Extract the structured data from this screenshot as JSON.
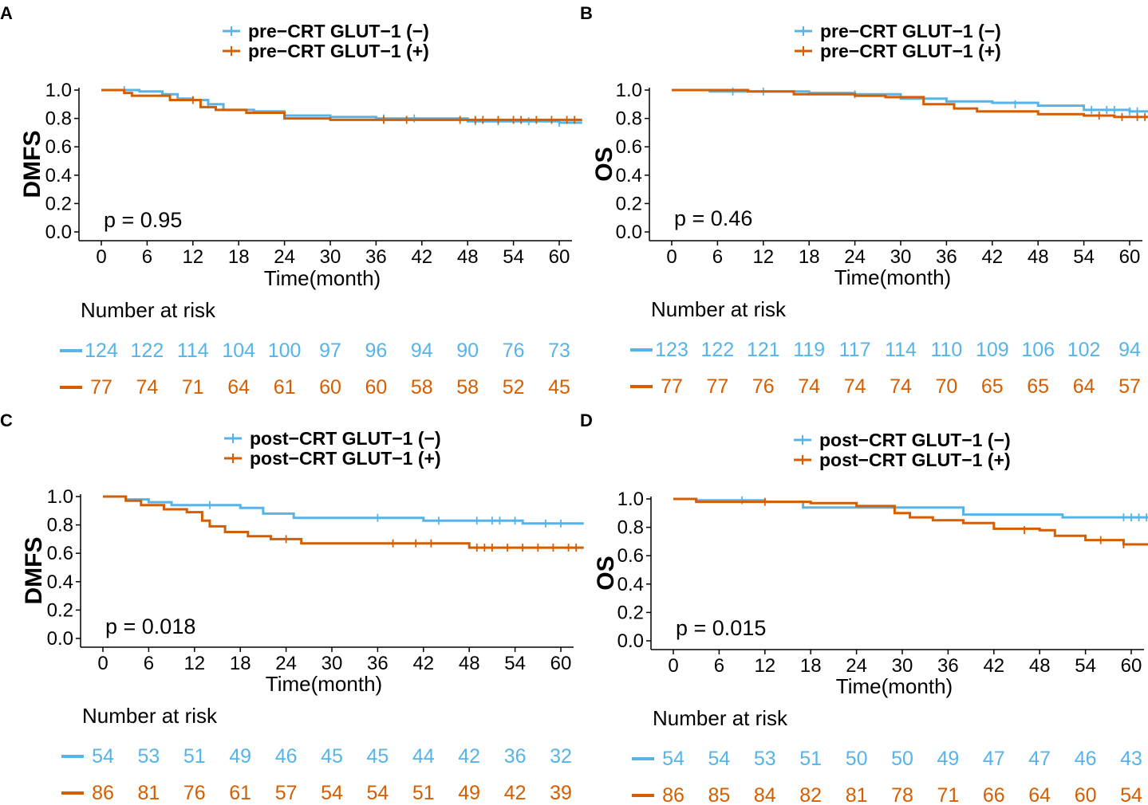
{
  "colors": {
    "neg": "#56B4E9",
    "pos": "#D55E00",
    "axis": "#000000"
  },
  "chart_data": [
    {
      "panel": "A",
      "type": "line",
      "ylabel": "DMFS",
      "xlabel": "Time(month)",
      "xlim": [
        0,
        63
      ],
      "ylim": [
        0,
        1
      ],
      "xticks": [
        "0",
        "6",
        "12",
        "18",
        "24",
        "30",
        "36",
        "42",
        "48",
        "54",
        "60"
      ],
      "yticks": [
        "0.0",
        "0.2",
        "0.4",
        "0.6",
        "0.8",
        "1.0"
      ],
      "pvalue": "p = 0.95",
      "risk_title": "Number at risk",
      "series": [
        {
          "name": "pre−CRT GLUT−1 (−)",
          "color": "#56B4E9",
          "x": [
            0,
            3,
            5,
            8,
            10,
            12,
            14,
            16,
            20,
            24,
            30,
            36,
            42,
            48,
            54,
            60,
            63
          ],
          "y": [
            1,
            1,
            0.99,
            0.97,
            0.94,
            0.93,
            0.9,
            0.86,
            0.85,
            0.82,
            0.81,
            0.8,
            0.8,
            0.78,
            0.78,
            0.77,
            0.77
          ],
          "censor": [
            [
              3,
              1
            ],
            [
              14,
              0.9
            ],
            [
              24,
              0.82
            ],
            [
              37,
              0.8
            ],
            [
              41,
              0.8
            ],
            [
              49,
              0.78
            ],
            [
              52,
              0.78
            ],
            [
              56,
              0.78
            ],
            [
              60,
              0.77
            ]
          ],
          "risk": [
            "124",
            "122",
            "114",
            "104",
            "100",
            "97",
            "96",
            "94",
            "90",
            "76",
            "73"
          ]
        },
        {
          "name": "pre−CRT GLUT−1 (+)",
          "color": "#D55E00",
          "x": [
            0,
            3,
            4,
            6,
            9,
            11,
            13,
            15,
            19,
            24,
            30,
            36,
            42,
            48,
            54,
            60,
            63
          ],
          "y": [
            1,
            0.98,
            0.96,
            0.96,
            0.93,
            0.93,
            0.88,
            0.86,
            0.84,
            0.8,
            0.79,
            0.79,
            0.79,
            0.79,
            0.79,
            0.79,
            0.79
          ],
          "censor": [
            [
              12,
              0.93
            ],
            [
              37,
              0.79
            ],
            [
              40,
              0.79
            ],
            [
              47,
              0.79
            ],
            [
              49,
              0.79
            ],
            [
              50,
              0.79
            ],
            [
              52,
              0.79
            ],
            [
              54,
              0.79
            ],
            [
              55,
              0.79
            ],
            [
              57,
              0.79
            ],
            [
              59,
              0.79
            ],
            [
              61,
              0.79
            ],
            [
              62,
              0.79
            ]
          ],
          "risk": [
            "77",
            "74",
            "71",
            "64",
            "61",
            "60",
            "60",
            "58",
            "58",
            "52",
            "45"
          ]
        }
      ]
    },
    {
      "panel": "B",
      "type": "line",
      "ylabel": "OS",
      "xlabel": "Time(month)",
      "xlim": [
        0,
        63
      ],
      "ylim": [
        0,
        1
      ],
      "xticks": [
        "0",
        "6",
        "12",
        "18",
        "24",
        "30",
        "36",
        "42",
        "48",
        "54",
        "60"
      ],
      "yticks": [
        "0.0",
        "0.2",
        "0.4",
        "0.6",
        "0.8",
        "1.0"
      ],
      "pvalue": "p = 0.46",
      "risk_title": "Number at risk",
      "series": [
        {
          "name": "pre−CRT GLUT−1 (−)",
          "color": "#56B4E9",
          "x": [
            0,
            5,
            12,
            18,
            24,
            30,
            36,
            42,
            48,
            54,
            60,
            63
          ],
          "y": [
            1,
            0.99,
            0.99,
            0.98,
            0.97,
            0.94,
            0.92,
            0.91,
            0.89,
            0.86,
            0.85,
            0.84
          ],
          "censor": [
            [
              8,
              0.99
            ],
            [
              12,
              0.99
            ],
            [
              24,
              0.97
            ],
            [
              45,
              0.9
            ],
            [
              55,
              0.86
            ],
            [
              57,
              0.86
            ],
            [
              58,
              0.86
            ],
            [
              60,
              0.85
            ],
            [
              61,
              0.85
            ]
          ],
          "risk": [
            "123",
            "122",
            "121",
            "119",
            "117",
            "114",
            "110",
            "109",
            "106",
            "102",
            "94"
          ]
        },
        {
          "name": "pre−CRT GLUT−1 (+)",
          "color": "#D55E00",
          "x": [
            0,
            10,
            16,
            24,
            28,
            33,
            37,
            40,
            48,
            54,
            58,
            63
          ],
          "y": [
            1,
            0.99,
            0.97,
            0.96,
            0.95,
            0.9,
            0.87,
            0.85,
            0.83,
            0.82,
            0.81,
            0.81
          ],
          "censor": [
            [
              56,
              0.82
            ],
            [
              59,
              0.81
            ],
            [
              61,
              0.81
            ],
            [
              62,
              0.81
            ]
          ],
          "risk": [
            "77",
            "77",
            "76",
            "74",
            "74",
            "74",
            "70",
            "65",
            "65",
            "64",
            "57"
          ]
        }
      ]
    },
    {
      "panel": "C",
      "type": "line",
      "ylabel": "DMFS",
      "xlabel": "Time(month)",
      "xlim": [
        0,
        63
      ],
      "ylim": [
        0,
        1
      ],
      "xticks": [
        "0",
        "6",
        "12",
        "18",
        "24",
        "30",
        "36",
        "42",
        "48",
        "54",
        "60"
      ],
      "yticks": [
        "0.0",
        "0.2",
        "0.4",
        "0.6",
        "0.8",
        "1.0"
      ],
      "pvalue": "p = 0.018",
      "risk_title": "Number at risk",
      "series": [
        {
          "name": "post−CRT GLUT−1 (−)",
          "color": "#56B4E9",
          "x": [
            0,
            3,
            6,
            9,
            14,
            18,
            21,
            25,
            36,
            42,
            48,
            55,
            60,
            63
          ],
          "y": [
            1,
            0.98,
            0.96,
            0.94,
            0.94,
            0.92,
            0.88,
            0.85,
            0.85,
            0.83,
            0.83,
            0.81,
            0.81,
            0.81
          ],
          "censor": [
            [
              14,
              0.94
            ],
            [
              36,
              0.85
            ],
            [
              44,
              0.83
            ],
            [
              49,
              0.83
            ],
            [
              51,
              0.83
            ],
            [
              52,
              0.83
            ],
            [
              54,
              0.83
            ],
            [
              58,
              0.81
            ],
            [
              60,
              0.81
            ]
          ],
          "risk": [
            "54",
            "53",
            "51",
            "49",
            "46",
            "45",
            "45",
            "44",
            "42",
            "36",
            "32"
          ]
        },
        {
          "name": "post−CRT GLUT−1 (+)",
          "color": "#D55E00",
          "x": [
            0,
            3,
            5,
            8,
            11,
            13,
            14,
            16,
            19,
            22,
            26,
            36,
            48,
            63
          ],
          "y": [
            1,
            0.97,
            0.94,
            0.91,
            0.89,
            0.83,
            0.79,
            0.75,
            0.72,
            0.7,
            0.67,
            0.67,
            0.64,
            0.64
          ],
          "censor": [
            [
              24,
              0.7
            ],
            [
              38,
              0.67
            ],
            [
              41,
              0.67
            ],
            [
              43,
              0.67
            ],
            [
              49,
              0.64
            ],
            [
              50,
              0.64
            ],
            [
              51,
              0.64
            ],
            [
              53,
              0.64
            ],
            [
              55,
              0.64
            ],
            [
              57,
              0.64
            ],
            [
              59,
              0.64
            ],
            [
              61,
              0.64
            ],
            [
              62,
              0.64
            ]
          ],
          "risk": [
            "86",
            "81",
            "76",
            "61",
            "57",
            "54",
            "54",
            "51",
            "49",
            "42",
            "39"
          ]
        }
      ]
    },
    {
      "panel": "D",
      "type": "line",
      "ylabel": "OS",
      "xlabel": "Time(month)",
      "xlim": [
        0,
        63
      ],
      "ylim": [
        0,
        1
      ],
      "xticks": [
        "0",
        "6",
        "12",
        "18",
        "24",
        "30",
        "36",
        "42",
        "48",
        "54",
        "60"
      ],
      "yticks": [
        "0.0",
        "0.2",
        "0.4",
        "0.6",
        "0.8",
        "1.0"
      ],
      "pvalue": "p = 0.015",
      "risk_title": "Number at risk",
      "series": [
        {
          "name": "post−CRT GLUT−1 (−)",
          "color": "#56B4E9",
          "x": [
            0,
            3,
            12,
            17,
            24,
            33,
            38,
            48,
            51,
            60,
            63
          ],
          "y": [
            1,
            0.99,
            0.98,
            0.94,
            0.94,
            0.94,
            0.89,
            0.89,
            0.87,
            0.87,
            0.87
          ],
          "censor": [
            [
              9,
              0.99
            ],
            [
              59,
              0.87
            ],
            [
              60,
              0.87
            ],
            [
              61,
              0.87
            ],
            [
              62,
              0.87
            ]
          ],
          "risk": [
            "54",
            "54",
            "53",
            "51",
            "50",
            "50",
            "49",
            "47",
            "47",
            "46",
            "43"
          ]
        },
        {
          "name": "post−CRT GLUT−1 (+)",
          "color": "#D55E00",
          "x": [
            0,
            3,
            12,
            18,
            24,
            29,
            31,
            34,
            38,
            42,
            48,
            50,
            54,
            59,
            63
          ],
          "y": [
            1,
            0.98,
            0.98,
            0.97,
            0.95,
            0.9,
            0.87,
            0.85,
            0.83,
            0.79,
            0.78,
            0.74,
            0.71,
            0.68,
            0.68
          ],
          "censor": [
            [
              12,
              0.98
            ],
            [
              46,
              0.78
            ],
            [
              56,
              0.71
            ],
            [
              59,
              0.68
            ]
          ],
          "risk": [
            "86",
            "85",
            "84",
            "82",
            "81",
            "78",
            "71",
            "66",
            "64",
            "60",
            "54"
          ]
        }
      ]
    }
  ]
}
